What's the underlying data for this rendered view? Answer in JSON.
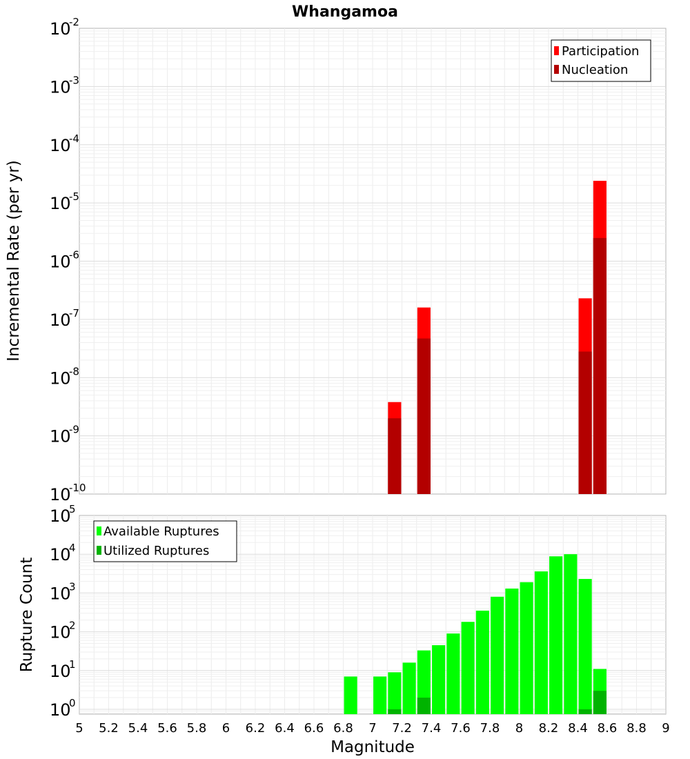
{
  "chart_data": {
    "type": "bar",
    "title": "Whangamoa",
    "xlabel": "Magnitude",
    "xlim": [
      5,
      9
    ],
    "x_ticks": [
      "5",
      "5.2",
      "5.4",
      "5.6",
      "5.8",
      "6",
      "6.2",
      "6.4",
      "6.6",
      "6.8",
      "7",
      "7.2",
      "7.4",
      "7.6",
      "7.8",
      "8",
      "8.2",
      "8.4",
      "8.6",
      "8.8",
      "9"
    ],
    "bin_width": 0.1,
    "panels": [
      {
        "ylabel": "Incremental Rate (per yr)",
        "y_scale": "log",
        "ylim": [
          1e-10,
          0.01
        ],
        "y_tick_exponents": [
          "-10",
          "-9",
          "-8",
          "-7",
          "-6",
          "-5",
          "-4",
          "-3",
          "-2"
        ],
        "grid": true,
        "legend_position": "top-right",
        "series": [
          {
            "name": "Participation",
            "color": "#ff0000",
            "x": [
              7.15,
              7.35,
              8.45,
              8.55
            ],
            "values": [
              3.8e-09,
              1.6e-07,
              2.3e-07,
              2.4e-05
            ]
          },
          {
            "name": "Nucleation",
            "color": "#b30000",
            "x": [
              7.15,
              7.35,
              8.45,
              8.55
            ],
            "values": [
              2e-09,
              4.7e-08,
              2.8e-08,
              2.5e-06
            ]
          }
        ]
      },
      {
        "ylabel": "Rupture Count",
        "y_scale": "log",
        "ylim": [
          0.75,
          100000.0
        ],
        "y_tick_exponents": [
          "0",
          "1",
          "2",
          "3",
          "4",
          "5"
        ],
        "grid": true,
        "legend_position": "top-left",
        "series": [
          {
            "name": "Available Ruptures",
            "color": "#00ff00",
            "x": [
              6.85,
              7.05,
              7.15,
              7.25,
              7.35,
              7.45,
              7.55,
              7.65,
              7.75,
              7.85,
              7.95,
              8.05,
              8.15,
              8.25,
              8.35,
              8.45,
              8.55
            ],
            "values": [
              7,
              7,
              9,
              16,
              33,
              45,
              90,
              180,
              350,
              800,
              1300,
              1900,
              3600,
              8800,
              10000,
              2300,
              11
            ]
          },
          {
            "name": "Utilized Ruptures",
            "color": "#00b300",
            "x": [
              7.15,
              7.35,
              8.45,
              8.55
            ],
            "values": [
              1,
              2,
              1,
              3
            ]
          }
        ]
      }
    ]
  }
}
